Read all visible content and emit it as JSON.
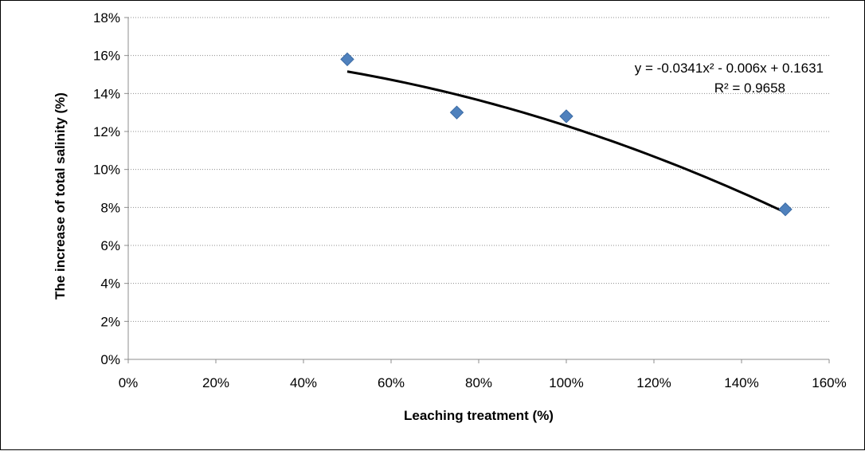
{
  "chart_data": {
    "type": "scatter",
    "xlabel": "Leaching treatment (%)",
    "ylabel": "The increase of total salinity (%)",
    "xlim": [
      0,
      1.6
    ],
    "ylim": [
      0,
      0.18
    ],
    "x_ticks": [
      "0%",
      "20%",
      "40%",
      "60%",
      "80%",
      "100%",
      "120%",
      "140%",
      "160%"
    ],
    "y_ticks": [
      "0%",
      "2%",
      "4%",
      "6%",
      "8%",
      "10%",
      "12%",
      "14%",
      "16%",
      "18%"
    ],
    "grid": "horizontal dotted",
    "series": [
      {
        "marker": "diamond",
        "color": "#4F81BD",
        "points": [
          {
            "x": 0.5,
            "y": 0.158
          },
          {
            "x": 0.75,
            "y": 0.13
          },
          {
            "x": 1.0,
            "y": 0.128
          },
          {
            "x": 1.5,
            "y": 0.079
          }
        ]
      }
    ],
    "trendline": {
      "type": "polynomial",
      "order": 2,
      "coefficients": {
        "a": -0.0341,
        "b": -0.006,
        "c": 0.1631
      },
      "x_range": [
        0.5,
        1.5
      ],
      "color": "#000000",
      "equation_label": "y = -0.0341x² - 0.006x + 0.1631",
      "r2_label": "R² = 0.9658"
    }
  }
}
